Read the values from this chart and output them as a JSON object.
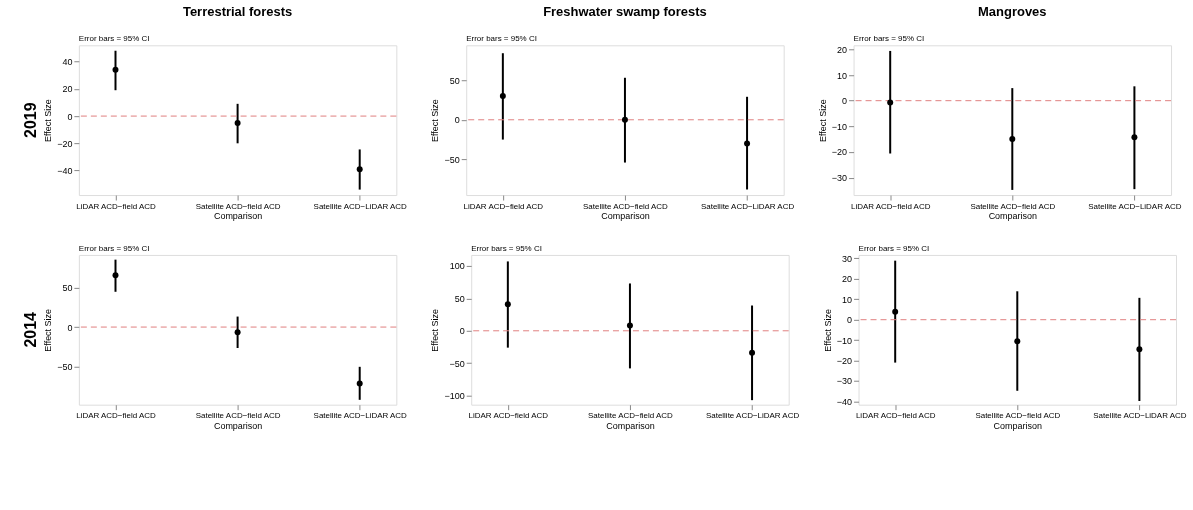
{
  "chart_data": [
    {
      "type": "scatter",
      "title": "Terrestrial forests",
      "subtitle": "2019",
      "xlabel": "Comparison",
      "ylabel": "Effect Size",
      "annotations": [
        "Error bars = 95% CI"
      ],
      "categories": [
        "LiDAR ACD−field ACD",
        "Satellite ACD−field ACD",
        "Satellite ACD−LiDAR ACD"
      ],
      "series": [
        {
          "color": "#000000",
          "values": [
            34,
            -5,
            -39
          ],
          "errors": [
            [
              19,
              48
            ],
            [
              -20,
              9
            ],
            [
              -54,
              -24.5
            ]
          ]
        }
      ],
      "ylim": [
        -58,
        52
      ],
      "yticks": [
        -40,
        -20,
        0,
        20,
        40
      ],
      "ref_lines": [
        {
          "axis": "y",
          "value": 0,
          "color": "#e08080",
          "line_style": "dashed"
        }
      ],
      "marker": "circle",
      "grid": false
    },
    {
      "type": "scatter",
      "title": "Freshwater swamp forests",
      "xlabel": "Comparison",
      "ylabel": "Effect Size",
      "annotations": [
        "Error bars = 95% CI"
      ],
      "categories": [
        "LiDAR ACD−field ACD",
        "Satellite ACD−field ACD",
        "Satellite ACD−LiDAR ACD"
      ],
      "series": [
        {
          "color": "#000000",
          "values": [
            30,
            0,
            -30
          ],
          "errors": [
            [
              -25,
              84
            ],
            [
              -54,
              53
            ],
            [
              -88,
              29
            ]
          ]
        }
      ],
      "ylim": [
        -95,
        94
      ],
      "yticks": [
        -50,
        0,
        50
      ],
      "ref_lines": [
        {
          "axis": "y",
          "value": 0,
          "color": "#e08080",
          "line_style": "dashed"
        }
      ],
      "marker": "circle",
      "grid": false
    },
    {
      "type": "scatter",
      "title": "Mangroves",
      "xlabel": "Comparison",
      "ylabel": "Effect Size",
      "annotations": [
        "Error bars = 95% CI"
      ],
      "categories": [
        "LiDAR ACD−field ACD",
        "Satellite ACD−field ACD",
        "Satellite ACD−LiDAR ACD"
      ],
      "series": [
        {
          "color": "#000000",
          "values": [
            -0.7,
            -14.9,
            -14.3
          ],
          "errors": [
            [
              -20.6,
              19.4
            ],
            [
              -34.8,
              4.9
            ],
            [
              -34.5,
              5.6
            ]
          ]
        }
      ],
      "ylim": [
        -36.8,
        21.6
      ],
      "yticks": [
        -30,
        -20,
        -10,
        0,
        10,
        20
      ],
      "ref_lines": [
        {
          "axis": "y",
          "value": 0,
          "color": "#e08080",
          "line_style": "dashed"
        }
      ],
      "marker": "circle",
      "grid": false
    },
    {
      "type": "scatter",
      "subtitle": "2014",
      "xlabel": "Comparison",
      "ylabel": "Effect Size",
      "annotations": [
        "Error bars = 95% CI"
      ],
      "categories": [
        "LiDAR ACD−field ACD",
        "Satellite ACD−field ACD",
        "Satellite ACD−LiDAR ACD"
      ],
      "series": [
        {
          "color": "#000000",
          "values": [
            66,
            -6.5,
            -72
          ],
          "errors": [
            [
              45,
              86
            ],
            [
              -26.7,
              13.4
            ],
            [
              -92.8,
              -50.7
            ]
          ]
        }
      ],
      "ylim": [
        -99,
        92
      ],
      "yticks": [
        -50,
        0,
        50
      ],
      "ref_lines": [
        {
          "axis": "y",
          "value": 0,
          "color": "#e08080",
          "line_style": "dashed"
        }
      ],
      "marker": "circle",
      "grid": false
    },
    {
      "type": "scatter",
      "xlabel": "Comparison",
      "ylabel": "Effect Size",
      "annotations": [
        "Error bars = 95% CI"
      ],
      "categories": [
        "LiDAR ACD−field ACD",
        "Satellite ACD−field ACD",
        "Satellite ACD−LiDAR ACD"
      ],
      "series": [
        {
          "color": "#000000",
          "values": [
            41,
            8,
            -34
          ],
          "errors": [
            [
              -26,
              107
            ],
            [
              -58,
              73
            ],
            [
              -107,
              39
            ]
          ]
        }
      ],
      "ylim": [
        -114,
        117
      ],
      "yticks": [
        -100,
        -50,
        0,
        50,
        100
      ],
      "ref_lines": [
        {
          "axis": "y",
          "value": 0,
          "color": "#e08080",
          "line_style": "dashed"
        }
      ],
      "marker": "circle",
      "grid": false
    },
    {
      "type": "scatter",
      "xlabel": "Comparison",
      "ylabel": "Effect Size",
      "annotations": [
        "Error bars = 95% CI"
      ],
      "categories": [
        "LiDAR ACD−field ACD",
        "Satellite ACD−field ACD",
        "Satellite ACD−LiDAR ACD"
      ],
      "series": [
        {
          "color": "#000000",
          "values": [
            3.9,
            -10.6,
            -14.5
          ],
          "errors": [
            [
              -21,
              28.9
            ],
            [
              -34.8,
              13.9
            ],
            [
              -39.8,
              10.7
            ]
          ]
        }
      ],
      "ylim": [
        -41.6,
        31.7
      ],
      "yticks": [
        -40,
        -30,
        -20,
        -10,
        0,
        10,
        20,
        30
      ],
      "ref_lines": [
        {
          "axis": "y",
          "value": 0,
          "color": "#e08080",
          "line_style": "dashed"
        }
      ],
      "marker": "circle",
      "grid": false
    }
  ]
}
